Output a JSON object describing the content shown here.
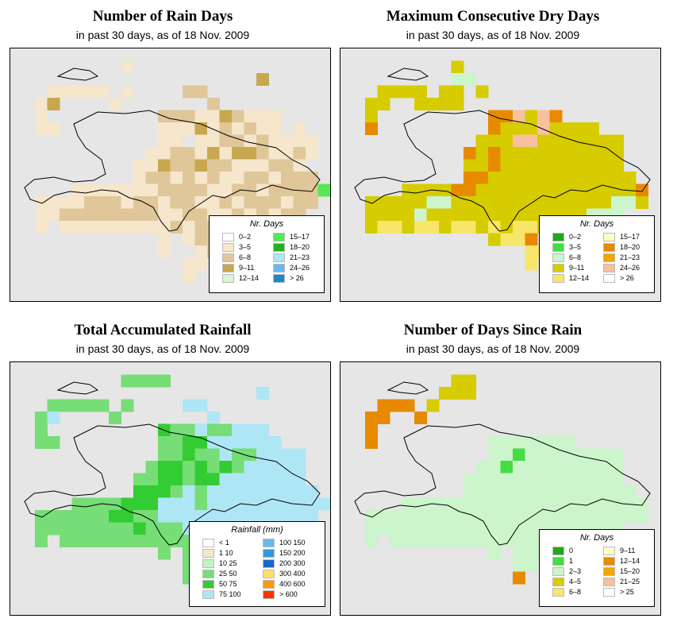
{
  "panels": [
    {
      "id": "rain-days",
      "title": "Number of Rain Days",
      "subtitle": "in past 30 days, as of  18 Nov. 2009",
      "legend_title": "Nr. Days",
      "legend": [
        {
          "label": "0–2",
          "color": "#ffffff"
        },
        {
          "label": "3–5",
          "color": "#f5e6cc"
        },
        {
          "label": "6–8",
          "color": "#e0c79a"
        },
        {
          "label": "9–11",
          "color": "#c8a84f"
        },
        {
          "label": "12–14",
          "color": "#d4f7d4"
        },
        {
          "label": "15–17",
          "color": "#55e855"
        },
        {
          "label": "18–20",
          "color": "#22b022"
        },
        {
          "label": "21–23",
          "color": "#aee6f5"
        },
        {
          "label": "24–26",
          "color": "#66bbee"
        },
        {
          "label": "> 26",
          "color": "#1a88cc"
        }
      ],
      "rows": [
        "..........................",
        ".........W................",
        "....................*.....",
        "...WWWWW.W....@@..........",
        "..W*....W.......@.........",
        "..W.........@@@WW*@WWW....",
        "..WW........WWW*W@W@WW.W..",
        "............WW.WW@@W@WWWW.",
        "...........WW@@W*W**@WW@W.",
        "..........WW*@@*@@WWW@@W..",
        "..........W@@W@W@WW@@W@@@.",
        ".....WWWWWWW@@@@WW@@W@@@@#",
        "..WWWW@@@W@@W@@WW@W@@@W@@.",
        "..WW@@@@@@@@WW@@WW@W@W@@..",
        "..W.WWWWWWWWW@W@@WW@WWW...",
        "............W.W@@.@WW.....",
        "............W..W@.@.......",
        "..............WW..........",
        "..............W...........",
        ".........................."
      ],
      "codes": {
        ".": "#e6e6e6",
        "W": "#f5e6cc",
        "@": "#e0c79a",
        "*": "#c8a84f",
        "#": "#55e855"
      }
    },
    {
      "id": "dry-days",
      "title": "Maximum Consecutive Dry Days",
      "subtitle": "in past 30 days, as of  18 Nov. 2009",
      "legend_title": "Nr. Days",
      "legend": [
        {
          "label": "0–2",
          "color": "#1fa81f"
        },
        {
          "label": "3–5",
          "color": "#44dd44"
        },
        {
          "label": "6–8",
          "color": "#ccf5cc"
        },
        {
          "label": "9–11",
          "color": "#d6cc00"
        },
        {
          "label": "12–14",
          "color": "#f7e66a"
        },
        {
          "label": "15–17",
          "color": "#ffffc8"
        },
        {
          "label": "18–20",
          "color": "#e88a00"
        },
        {
          "label": "21–23",
          "color": "#f5a500"
        },
        {
          "label": "24–26",
          "color": "#f7c1a0"
        },
        {
          "label": "> 26",
          "color": "#ffffff"
        }
      ],
      "rows": [
        "..........................",
        ".........Y................",
        ".........MM...............",
        "...YYYY.YY.Y..............",
        "..YY..YYYY................",
        "..Y.........OOPYPO........",
        "..O.........OYYYPYYYY.....",
        "...........YYYPPYYYYYYY...",
        "..........OYOYYYYYYYYYY...",
        "..........YYOYYYYYYYYYY...",
        "..........OOYYYYYYYYYYYY..",
        ".....YYYYOOYYYYYYYYYYYYYO.",
        "..YYYYYMMYYYYYYYYYYYYYMMY.",
        "..YYYYMYYYYYYYYYYYYYMMM...",
        "..YLLYLLYLLYLYLLYLLY......",
        "............YLLO.O........",
        "...............LL.........",
        "...............L..........",
        "..........................",
        ".........................."
      ],
      "codes": {
        ".": "#e6e6e6",
        "Y": "#d6cc00",
        "O": "#e88a00",
        "P": "#f7c1a0",
        "M": "#ccf5cc",
        "L": "#f7e66a"
      }
    },
    {
      "id": "rainfall",
      "title": "Total Accumulated Rainfall",
      "subtitle": "in past 30 days, as of  18 Nov. 2009",
      "legend_title": "Rainfall (mm)",
      "legend": [
        {
          "label": "< 1",
          "color": "#ffffff"
        },
        {
          "label": "1   10",
          "color": "#f5e6cc"
        },
        {
          "label": "10   25",
          "color": "#bff5bf"
        },
        {
          "label": "25   50",
          "color": "#77dd77"
        },
        {
          "label": "50   75",
          "color": "#33cc33"
        },
        {
          "label": "75  100",
          "color": "#aee6f5"
        },
        {
          "label": "100  150",
          "color": "#66bbee"
        },
        {
          "label": "150  200",
          "color": "#3399dd"
        },
        {
          "label": "200  300",
          "color": "#1a66cc"
        },
        {
          "label": "300  400",
          "color": "#ffe066"
        },
        {
          "label": "400  600",
          "color": "#ff9900"
        },
        {
          "label": "> 600",
          "color": "#ff3300"
        }
      ],
      "rows": [
        "..........................",
        ".........GGGG.............",
        "....................B.....",
        "...GGGGG.G....BB..........",
        "..GB....G.......B.........",
        "..G.........KGGBGGBBB.....",
        "..GG........GGKKBBBBBB....",
        "............GGKGGBGGBBBB..",
        "...........GKKGKGKGBBBBB..",
        "..........GGKKGKKBBBBBBB..",
        "..........KKKGBGBBBBBBBBB.",
        ".....GGGGKKKBBBGBBBBBBBBBB",
        "..GGGGGGKKGGBBBBBBBBBBBBB.",
        "..GGGGGGGGKGGGBBBGBBBB....",
        "..G.GGGGGGGGGGGGG.........",
        "............G.GGG.........",
        "..............GG..........",
        "..............G...........",
        "..........................",
        ".........................."
      ],
      "codes": {
        ".": "#e6e6e6",
        "G": "#77dd77",
        "K": "#33cc33",
        "B": "#aee6f5"
      }
    },
    {
      "id": "days-since-rain",
      "title": "Number of Days Since Rain",
      "subtitle": "in past 30 days, as of  18 Nov. 2009",
      "legend_title": "Nr. Days",
      "legend": [
        {
          "label": "0",
          "color": "#1fa81f"
        },
        {
          "label": "1",
          "color": "#44dd44"
        },
        {
          "label": "2–3",
          "color": "#ccf5cc"
        },
        {
          "label": "4–5",
          "color": "#d6cc00"
        },
        {
          "label": "6–8",
          "color": "#f7e66a"
        },
        {
          "label": "9–11",
          "color": "#ffffc8"
        },
        {
          "label": "12–14",
          "color": "#e88a00"
        },
        {
          "label": "15–20",
          "color": "#f5a500"
        },
        {
          "label": "21–25",
          "color": "#f7c1a0"
        },
        {
          "label": "> 25",
          "color": "#ffffff"
        }
      ],
      "rows": [
        "..........................",
        ".........YY...............",
        "........YYY...............",
        "...OOO.Y..................",
        "..OO..O...................",
        "..O.......................",
        "..O.........CCCCCCC.......",
        "............CCMCCCCCCCC...",
        "...........CCMCCCCCCCCC...",
        "..........CCCCCCCCCCCCC...",
        "..........CCCCCCCCCCCCCC..",
        ".....CCCCCCCCCCCCCCCCCCCC.",
        "..CCCCCCCCCCCCCCCCCCCCCCC.",
        "..CCCCCCCCCCCCCCCCCCCCC...",
        "..C.CCCCCCCCCCCCCCC.......",
        "............C.CCC.........",
        "..............CC..........",
        "..............O...........",
        "..........................",
        ".........................."
      ],
      "codes": {
        ".": "#e6e6e6",
        "C": "#ccf5cc",
        "Y": "#d6cc00",
        "O": "#e88a00",
        "M": "#44dd44"
      }
    }
  ]
}
